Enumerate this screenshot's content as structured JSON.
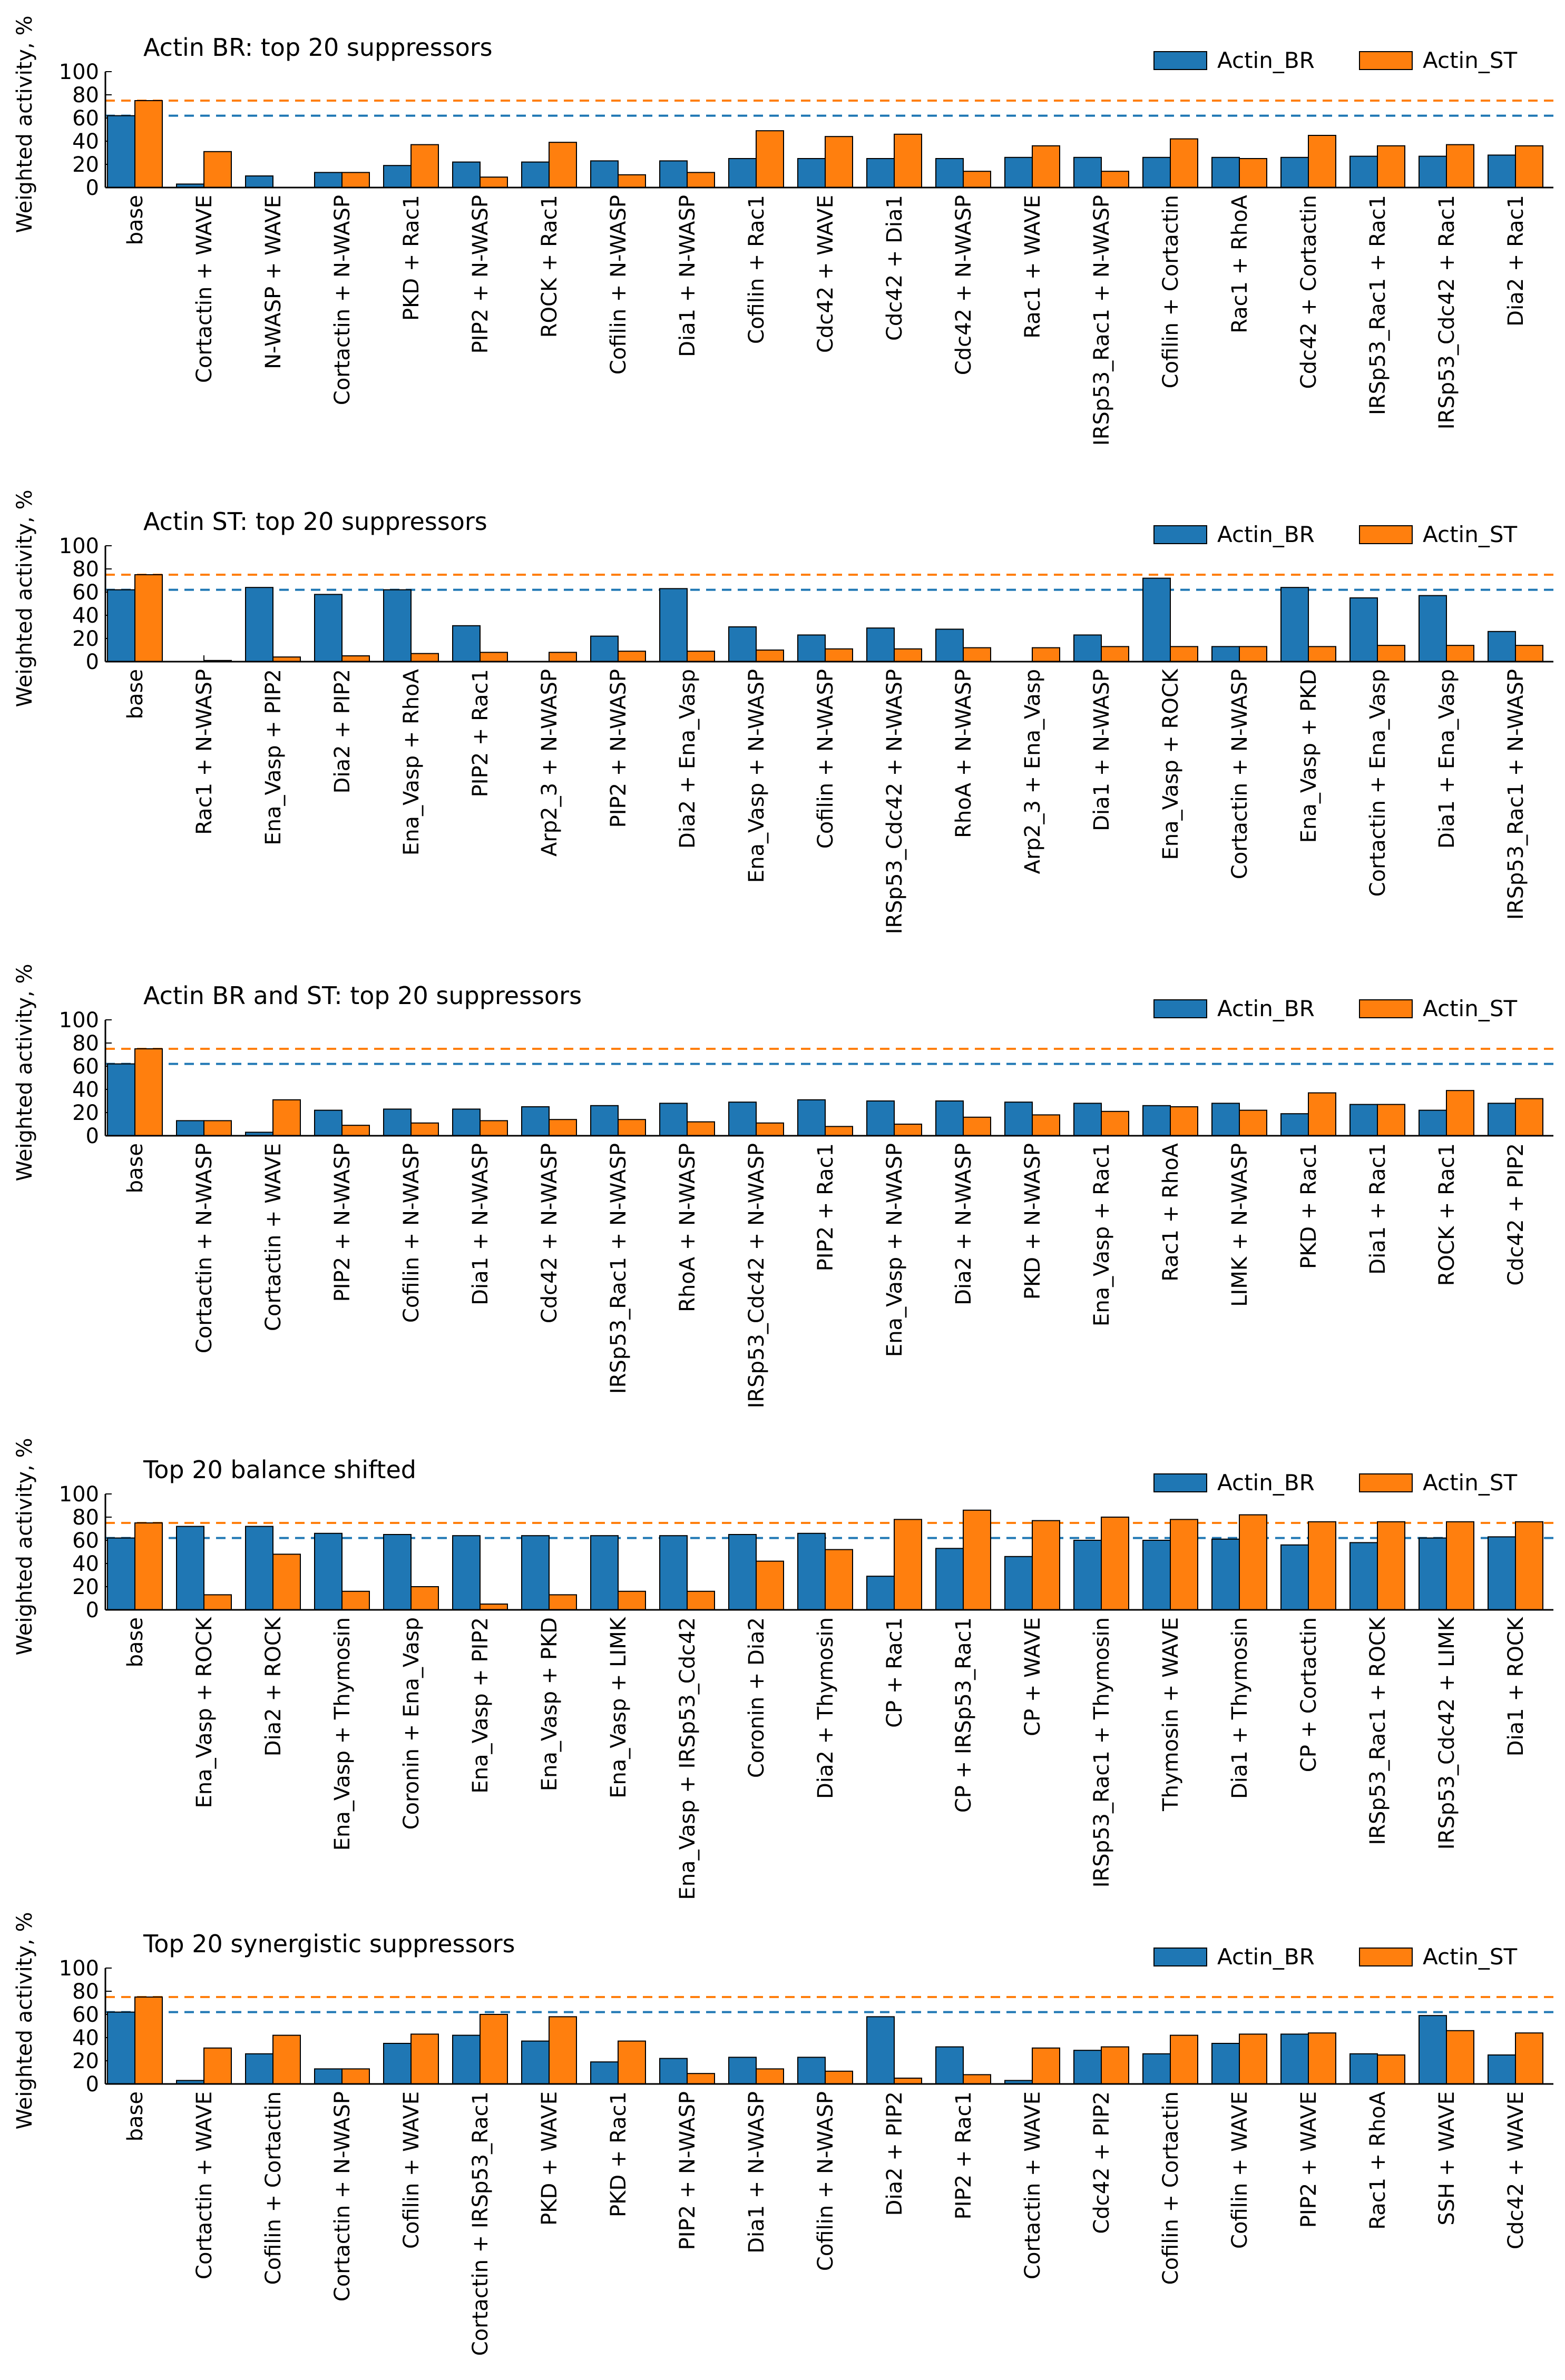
{
  "colors": {
    "actin_br": "#1f77b4",
    "actin_st": "#ff7f0e"
  },
  "chart_data": [
    {
      "type": "bar",
      "title": "Actin BR: top 20 suppressors",
      "ylabel": "Weighted activity, %",
      "ylim": [
        0,
        100
      ],
      "yticks": [
        0,
        20,
        40,
        60,
        80,
        100
      ],
      "legend_position": "top-right",
      "reference_lines": {
        "Actin_BR": 62,
        "Actin_ST": 75
      },
      "categories": [
        "base",
        "Cortactin + WAVE",
        "N-WASP + WAVE",
        "Cortactin + N-WASP",
        "PKD + Rac1",
        "PIP2 + N-WASP",
        "ROCK + Rac1",
        "Cofilin + N-WASP",
        "Dia1 + N-WASP",
        "Cofilin + Rac1",
        "Cdc42 + WAVE",
        "Cdc42 + Dia1",
        "Cdc42 + N-WASP",
        "Rac1 + WAVE",
        "IRSp53_Rac1 + N-WASP",
        "Cofilin + Cortactin",
        "Rac1 + RhoA",
        "Cdc42 + Cortactin",
        "IRSp53_Rac1 + Rac1",
        "IRSp53_Cdc42 + Rac1",
        "Dia2 + Rac1"
      ],
      "series": [
        {
          "name": "Actin_BR",
          "values": [
            62,
            3,
            10,
            13,
            19,
            22,
            22,
            23,
            23,
            25,
            25,
            25,
            25,
            26,
            26,
            26,
            26,
            26,
            27,
            27,
            28
          ]
        },
        {
          "name": "Actin_ST",
          "values": [
            75,
            31,
            0,
            13,
            37,
            9,
            39,
            11,
            13,
            49,
            44,
            46,
            14,
            36,
            14,
            42,
            25,
            45,
            36,
            37,
            36
          ]
        }
      ]
    },
    {
      "type": "bar",
      "title": "Actin ST: top 20 suppressors",
      "ylabel": "Weighted activity, %",
      "ylim": [
        0,
        100
      ],
      "yticks": [
        0,
        20,
        40,
        60,
        80,
        100
      ],
      "legend_position": "top-right",
      "reference_lines": {
        "Actin_BR": 62,
        "Actin_ST": 75
      },
      "categories": [
        "base",
        "Rac1 + N-WASP",
        "Ena_Vasp + PIP2",
        "Dia2 + PIP2",
        "Ena_Vasp + RhoA",
        "PIP2 + Rac1",
        "Arp2_3 + N-WASP",
        "PIP2 + N-WASP",
        "Dia2 + Ena_Vasp",
        "Ena_Vasp + N-WASP",
        "Cofilin + N-WASP",
        "IRSp53_Cdc42 + N-WASP",
        "RhoA + N-WASP",
        "Arp2_3 + Ena_Vasp",
        "Dia1 + N-WASP",
        "Ena_Vasp + ROCK",
        "Cortactin + N-WASP",
        "Ena_Vasp + PKD",
        "Cortactin + Ena_Vasp",
        "Dia1 + Ena_Vasp",
        "IRSp53_Rac1 + N-WASP"
      ],
      "series": [
        {
          "name": "Actin_BR",
          "values": [
            62,
            0,
            64,
            58,
            62,
            31,
            0,
            22,
            63,
            30,
            23,
            29,
            28,
            0,
            23,
            72,
            13,
            64,
            55,
            57,
            26
          ]
        },
        {
          "name": "Actin_ST",
          "values": [
            75,
            1,
            4,
            5,
            7,
            8,
            8,
            9,
            9,
            10,
            11,
            11,
            12,
            12,
            13,
            13,
            13,
            13,
            14,
            14,
            14
          ]
        }
      ]
    },
    {
      "type": "bar",
      "title": "Actin BR and ST: top 20 suppressors",
      "ylabel": "Weighted activity, %",
      "ylim": [
        0,
        100
      ],
      "yticks": [
        0,
        20,
        40,
        60,
        80,
        100
      ],
      "legend_position": "top-right",
      "reference_lines": {
        "Actin_BR": 62,
        "Actin_ST": 75
      },
      "categories": [
        "base",
        "Cortactin + N-WASP",
        "Cortactin + WAVE",
        "PIP2 + N-WASP",
        "Cofilin + N-WASP",
        "Dia1 + N-WASP",
        "Cdc42 + N-WASP",
        "IRSp53_Rac1 + N-WASP",
        "RhoA + N-WASP",
        "IRSp53_Cdc42 + N-WASP",
        "PIP2 + Rac1",
        "Ena_Vasp + N-WASP",
        "Dia2 + N-WASP",
        "PKD + N-WASP",
        "Ena_Vasp + Rac1",
        "Rac1 + RhoA",
        "LIMK + N-WASP",
        "PKD + Rac1",
        "Dia1 + Rac1",
        "ROCK + Rac1",
        "Cdc42 + PIP2"
      ],
      "series": [
        {
          "name": "Actin_BR",
          "values": [
            62,
            13,
            3,
            22,
            23,
            23,
            25,
            26,
            28,
            29,
            31,
            30,
            30,
            29,
            28,
            26,
            28,
            19,
            27,
            22,
            28
          ]
        },
        {
          "name": "Actin_ST",
          "values": [
            75,
            13,
            31,
            9,
            11,
            13,
            14,
            14,
            12,
            11,
            8,
            10,
            16,
            18,
            21,
            25,
            22,
            37,
            27,
            39,
            32
          ]
        }
      ]
    },
    {
      "type": "bar",
      "title": "Top 20 balance shifted",
      "ylabel": "Weighted activity, %",
      "ylim": [
        0,
        100
      ],
      "yticks": [
        0,
        20,
        40,
        60,
        80,
        100
      ],
      "legend_position": "top-right",
      "reference_lines": {
        "Actin_BR": 62,
        "Actin_ST": 75
      },
      "categories": [
        "base",
        "Ena_Vasp + ROCK",
        "Dia2 + ROCK",
        "Ena_Vasp + Thymosin",
        "Coronin + Ena_Vasp",
        "Ena_Vasp + PIP2",
        "Ena_Vasp + PKD",
        "Ena_Vasp + LIMK",
        "Ena_Vasp + IRSp53_Cdc42",
        "Coronin + Dia2",
        "Dia2 + Thymosin",
        "CP + Rac1",
        "CP + IRSp53_Rac1",
        "CP + WAVE",
        "IRSp53_Rac1 + Thymosin",
        "Thymosin + WAVE",
        "Dia1 + Thymosin",
        "CP + Cortactin",
        "IRSp53_Rac1 + ROCK",
        "IRSp53_Cdc42 + LIMK",
        "Dia1 + ROCK"
      ],
      "series": [
        {
          "name": "Actin_BR",
          "values": [
            62,
            72,
            72,
            66,
            65,
            64,
            64,
            64,
            64,
            65,
            66,
            29,
            53,
            46,
            60,
            60,
            61,
            56,
            58,
            62,
            63
          ]
        },
        {
          "name": "Actin_ST",
          "values": [
            75,
            13,
            48,
            16,
            20,
            5,
            13,
            16,
            16,
            42,
            52,
            78,
            86,
            77,
            80,
            78,
            82,
            76,
            76,
            76,
            76
          ]
        }
      ]
    },
    {
      "type": "bar",
      "title": "Top 20 synergistic suppressors",
      "ylabel": "Weighted activity, %",
      "ylim": [
        0,
        100
      ],
      "yticks": [
        0,
        20,
        40,
        60,
        80,
        100
      ],
      "legend_position": "top-right",
      "reference_lines": {
        "Actin_BR": 62,
        "Actin_ST": 75
      },
      "categories": [
        "base",
        "Cortactin + WAVE",
        "Cofilin + Cortactin",
        "Cortactin + N-WASP",
        "Cofilin + WAVE",
        "Cortactin + IRSp53_Rac1",
        "PKD + WAVE",
        "PKD + Rac1",
        "PIP2 + N-WASP",
        "Dia1 + N-WASP",
        "Cofilin + N-WASP",
        "Dia2 + PIP2",
        "PIP2 + Rac1",
        "Cortactin + WAVE",
        "Cdc42 + PIP2",
        "Cofilin + Cortactin",
        "Cofilin + WAVE",
        "PIP2 + WAVE",
        "Rac1 + RhoA",
        "SSH + WAVE",
        "Cdc42 + WAVE"
      ],
      "series": [
        {
          "name": "Actin_BR",
          "values": [
            62,
            3,
            26,
            13,
            35,
            42,
            37,
            19,
            22,
            23,
            23,
            58,
            32,
            3,
            29,
            26,
            35,
            43,
            26,
            59,
            25
          ]
        },
        {
          "name": "Actin_ST",
          "values": [
            75,
            31,
            42,
            13,
            43,
            60,
            58,
            37,
            9,
            13,
            11,
            5,
            8,
            31,
            32,
            42,
            43,
            44,
            25,
            46,
            44
          ]
        }
      ]
    }
  ]
}
